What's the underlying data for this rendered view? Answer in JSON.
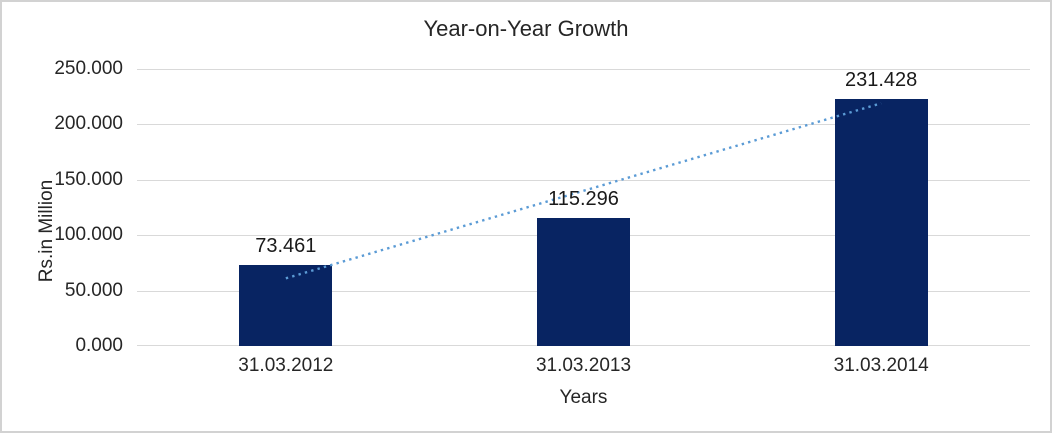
{
  "chart_data": {
    "type": "bar",
    "title": "Year-on-Year Growth",
    "xlabel": "Years",
    "ylabel": "Rs.in Million",
    "categories": [
      "31.03.2012",
      "31.03.2013",
      "31.03.2014"
    ],
    "values": [
      73.461,
      115.296,
      231.428
    ],
    "value_labels": [
      "73.461",
      "115.296",
      "231.428"
    ],
    "ylim": [
      0,
      250
    ],
    "ytick_labels": [
      "0.000",
      "50.000",
      "100.000",
      "150.000",
      "200.000",
      "250.000"
    ],
    "grid": "horizontal",
    "legend": "none",
    "bar_color": "#082462",
    "trendline": {
      "type": "linear",
      "style": "dotted",
      "color": "#5b9bd5"
    }
  }
}
